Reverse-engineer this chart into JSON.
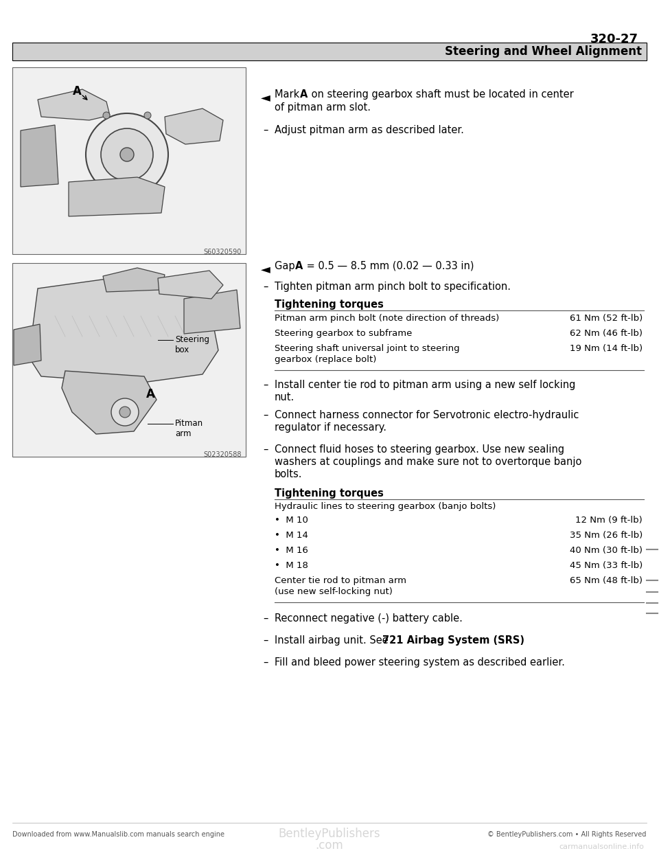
{
  "page_number": "320-27",
  "section_title": "Steering and Wheel Alignment",
  "bg_color": "#ffffff",
  "text_color": "#000000",
  "header_bg": "#c8c8c8",
  "dash1_text": "Adjust pitman arm as described later.",
  "dash2_text": "Tighten pitman arm pinch bolt to specification.",
  "torques1_title": "Tightening torques",
  "torques1_rows": [
    [
      "Pitman arm pinch bolt (note direction of threads)",
      "61 Nm (52 ft-lb)"
    ],
    [
      "Steering gearbox to subframe",
      "62 Nm (46 ft-lb)"
    ],
    [
      "Steering shaft universal joint to steering\ngearbox (replace bolt)",
      "19 Nm (14 ft-lb)"
    ]
  ],
  "dash3_text1": "Install center tie rod to pitman arm using a new self locking",
  "dash3_text2": "nut.",
  "dash4_text1": "Connect harness connector for Servotronic electro-hydraulic",
  "dash4_text2": "regulator if necessary.",
  "dash5_text1": "Connect fluid hoses to steering gearbox. Use new sealing",
  "dash5_text2": "washers at couplings and make sure not to overtorque banjo",
  "dash5_text3": "bolts.",
  "torques2_title": "Tightening torques",
  "torques2_header": "Hydraulic lines to steering gearbox (banjo bolts)",
  "torques2_rows": [
    [
      "•  M 10",
      "12 Nm (9 ft-lb)"
    ],
    [
      "•  M 14",
      "35 Nm (26 ft-lb)"
    ],
    [
      "•  M 16",
      "40 Nm (30 ft-lb)"
    ],
    [
      "•  M 18",
      "45 Nm (33 ft-lb)"
    ],
    [
      "Center tie rod to pitman arm\n(use new self-locking nut)",
      "65 Nm (48 ft-lb)"
    ]
  ],
  "dash6_text": "Reconnect negative (-) battery cable.",
  "dash8_text": "Fill and bleed power steering system as described earlier.",
  "footer_left": "Downloaded from www.Manualslib.com manuals search engine",
  "footer_center": "© BentleyPublishers.com • All Rights Reserved",
  "img1_label": "S60320590",
  "img2_label": "S02320588"
}
